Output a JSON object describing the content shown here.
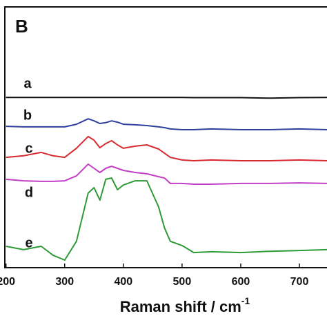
{
  "chart_data": {
    "type": "line",
    "panel_label": "B",
    "xlabel": "Raman shift / cm",
    "xlabel_sup": "-1",
    "x": [
      200,
      230,
      260,
      280,
      300,
      320,
      340,
      350,
      360,
      370,
      380,
      390,
      400,
      420,
      440,
      460,
      470,
      480,
      500,
      520,
      550,
      600,
      650,
      700,
      747
    ],
    "xlim": [
      198,
      747
    ],
    "xticks": [
      200,
      300,
      400,
      500,
      600,
      700
    ],
    "ylim": [
      0,
      100
    ],
    "series": [
      {
        "name": "a",
        "color": "#111111",
        "values": [
          65.3,
          65.3,
          65.3,
          65.3,
          65.3,
          65.3,
          65.3,
          65.3,
          65.3,
          65.3,
          65.3,
          65.3,
          65.3,
          65.3,
          65.3,
          65.3,
          65.3,
          65.3,
          65.3,
          65.2,
          65.2,
          65.2,
          65.0,
          65.2,
          65.3
        ]
      },
      {
        "name": "b",
        "color": "#2e3f9e",
        "values": [
          54.2,
          54.0,
          54.0,
          54.0,
          54.0,
          55.0,
          57.1,
          56.3,
          55.3,
          55.6,
          56.3,
          55.8,
          55.0,
          54.8,
          54.5,
          54.0,
          53.7,
          53.2,
          52.9,
          52.9,
          53.2,
          52.9,
          52.9,
          53.2,
          52.9
        ]
      },
      {
        "name": "c",
        "color": "#d62a30",
        "values": [
          42.3,
          42.9,
          44.2,
          42.9,
          42.3,
          45.8,
          50.3,
          48.9,
          46.0,
          47.6,
          48.7,
          47.1,
          45.8,
          46.6,
          47.1,
          45.5,
          43.9,
          42.3,
          41.3,
          41.0,
          41.3,
          41.0,
          41.0,
          41.3,
          41.0
        ]
      },
      {
        "name": "d",
        "color": "#c23ec4",
        "values": [
          33.9,
          33.3,
          33.1,
          33.1,
          33.3,
          35.2,
          39.7,
          38.1,
          36.5,
          38.1,
          38.9,
          38.1,
          37.3,
          36.5,
          36.0,
          34.9,
          34.4,
          32.3,
          32.3,
          32.0,
          32.0,
          32.3,
          32.3,
          32.5,
          32.3
        ]
      },
      {
        "name": "e",
        "color": "#2e9a36",
        "values": [
          8.2,
          6.9,
          8.2,
          4.8,
          2.9,
          10.1,
          28.6,
          30.7,
          25.9,
          33.9,
          34.4,
          29.9,
          31.7,
          33.3,
          33.3,
          23.3,
          15.3,
          10.1,
          8.5,
          5.8,
          6.1,
          5.8,
          6.3,
          6.6,
          6.9
        ]
      }
    ]
  }
}
